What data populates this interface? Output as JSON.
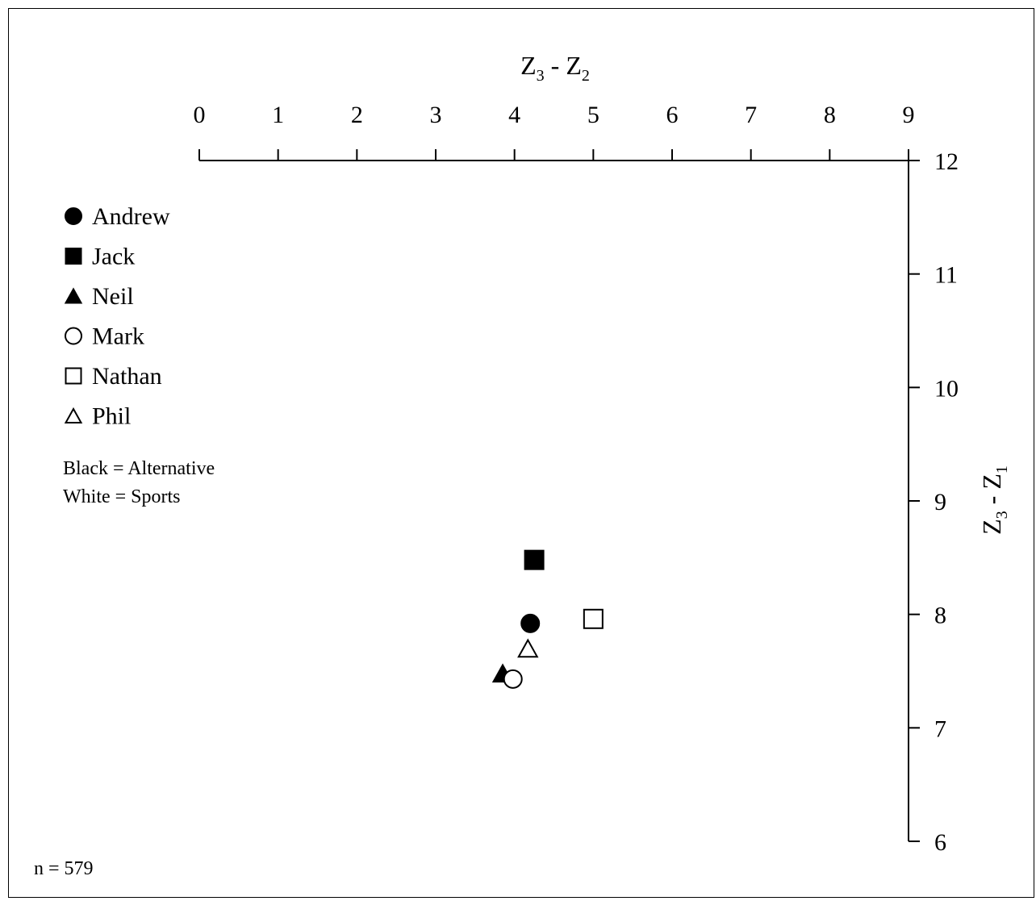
{
  "chart_data": {
    "type": "scatter",
    "x_axis": {
      "title_main_1": "Z",
      "title_sub_1": "3",
      "title_sep": " - ",
      "title_main_2": "Z",
      "title_sub_2": "2",
      "range": [
        0,
        9
      ],
      "ticks": [
        "0",
        "1",
        "2",
        "3",
        "4",
        "5",
        "6",
        "7",
        "8",
        "9"
      ],
      "position": "top"
    },
    "y_axis": {
      "title_main_1": "Z",
      "title_sub_1": "3",
      "title_sep": " - ",
      "title_main_2": "Z",
      "title_sub_2": "1",
      "range": [
        6,
        12
      ],
      "ticks": [
        "6",
        "7",
        "8",
        "9",
        "10",
        "11",
        "12"
      ],
      "position": "right"
    },
    "series": [
      {
        "name": "Andrew",
        "marker": "circle",
        "fill": "black",
        "x": 4.2,
        "y": 7.92
      },
      {
        "name": "Jack",
        "marker": "square",
        "fill": "black",
        "x": 4.25,
        "y": 8.48
      },
      {
        "name": "Neil",
        "marker": "triangle",
        "fill": "black",
        "x": 3.85,
        "y": 7.48
      },
      {
        "name": "Mark",
        "marker": "circle",
        "fill": "white",
        "x": 3.98,
        "y": 7.43
      },
      {
        "name": "Nathan",
        "marker": "square",
        "fill": "white",
        "x": 5.0,
        "y": 7.96
      },
      {
        "name": "Phil",
        "marker": "triangle",
        "fill": "white",
        "x": 4.17,
        "y": 7.7
      }
    ],
    "legend_placement": "top-left",
    "notes": [
      "Black = Alternative",
      "White = Sports"
    ],
    "sample_size": "n = 579",
    "grid": false
  }
}
